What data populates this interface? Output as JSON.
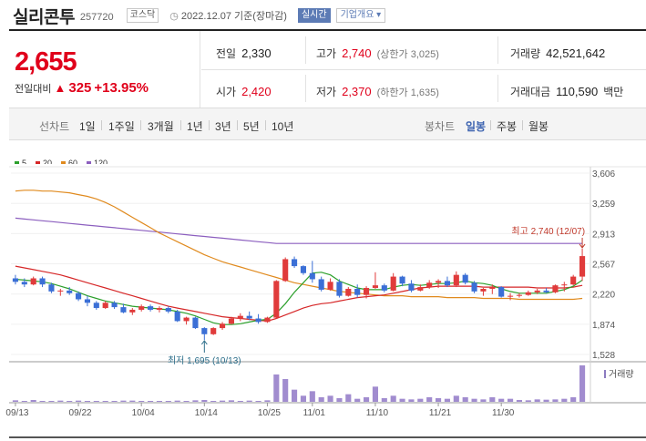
{
  "header": {
    "name": "실리콘투",
    "code": "257720",
    "market": "코스닥",
    "date": "2022.12.07",
    "basis": "기준(장마감)",
    "realtime": "실시간",
    "company_info": "기업개요"
  },
  "quote": {
    "price": "2,655",
    "change_label": "전일대비",
    "change": "325",
    "change_pct": "+13.95%"
  },
  "stats": {
    "prev_label": "전일",
    "prev": "2,330",
    "high_label": "고가",
    "high": "2,740",
    "upper_limit": "(상한가 3,025)",
    "volume_label": "거래량",
    "volume": "42,521,642",
    "open_label": "시가",
    "open": "2,420",
    "low_label": "저가",
    "low": "2,370",
    "lower_limit": "(하한가 1,635)",
    "amount_label": "거래대금",
    "amount": "110,590",
    "amount_unit": "백만"
  },
  "periods": {
    "label": "선차트",
    "items": [
      "1일",
      "1주일",
      "3개월",
      "1년",
      "3년",
      "5년",
      "10년"
    ],
    "candle_label": "봉차트",
    "candle_items": [
      "일봉",
      "주봉",
      "월봉"
    ],
    "candle_active": 0
  },
  "legend": [
    {
      "label": "5",
      "color": "#2ca02c"
    },
    {
      "label": "20",
      "color": "#d62728"
    },
    {
      "label": "60",
      "color": "#e08a1e"
    },
    {
      "label": "120",
      "color": "#8c5fbf"
    }
  ],
  "chart_data": {
    "type": "candlestick",
    "y_ticks": [
      "3,606",
      "3,259",
      "2,913",
      "2,567",
      "2,220",
      "1,874",
      "1,528"
    ],
    "ylim": [
      1528,
      3606
    ],
    "x_labels": [
      "09/13",
      "09/22",
      "10/04",
      "10/14",
      "10/25",
      "11/01",
      "11/10",
      "11/21",
      "11/30"
    ],
    "x_label_index": [
      0,
      7,
      14,
      21,
      28,
      33,
      40,
      47,
      54
    ],
    "up_color": "#e03b3b",
    "down_color": "#3b6fd6",
    "high_annotation": "최고 2,740 (12/07)",
    "low_annotation": "최저 1,695 (10/13)",
    "volume_label": "거래량",
    "candles": [
      [
        2400,
        2440,
        2330,
        2360
      ],
      [
        2360,
        2400,
        2300,
        2330
      ],
      [
        2330,
        2420,
        2320,
        2400
      ],
      [
        2400,
        2420,
        2300,
        2330
      ],
      [
        2330,
        2350,
        2230,
        2250
      ],
      [
        2250,
        2280,
        2200,
        2260
      ],
      [
        2260,
        2300,
        2210,
        2230
      ],
      [
        2230,
        2250,
        2140,
        2160
      ],
      [
        2160,
        2200,
        2080,
        2120
      ],
      [
        2120,
        2140,
        2040,
        2060
      ],
      [
        2060,
        2140,
        2050,
        2120
      ],
      [
        2120,
        2140,
        2050,
        2070
      ],
      [
        2070,
        2110,
        2000,
        2010
      ],
      [
        2010,
        2060,
        1980,
        2040
      ],
      [
        2040,
        2100,
        2020,
        2080
      ],
      [
        2080,
        2100,
        2020,
        2040
      ],
      [
        2040,
        2080,
        2010,
        2060
      ],
      [
        2060,
        2080,
        2000,
        2020
      ],
      [
        2020,
        2040,
        1900,
        1910
      ],
      [
        1910,
        1960,
        1870,
        1950
      ],
      [
        1950,
        1960,
        1820,
        1830
      ],
      [
        1830,
        1840,
        1695,
        1760
      ],
      [
        1760,
        1840,
        1750,
        1830
      ],
      [
        1830,
        1900,
        1810,
        1880
      ],
      [
        1880,
        1960,
        1870,
        1940
      ],
      [
        1940,
        2000,
        1910,
        1970
      ],
      [
        1970,
        2020,
        1920,
        1940
      ],
      [
        1940,
        1990,
        1880,
        1900
      ],
      [
        1900,
        1960,
        1890,
        1950
      ],
      [
        1950,
        2380,
        1940,
        2370
      ],
      [
        2370,
        2640,
        2360,
        2620
      ],
      [
        2620,
        2650,
        2520,
        2540
      ],
      [
        2540,
        2550,
        2440,
        2460
      ],
      [
        2460,
        2600,
        2350,
        2390
      ],
      [
        2390,
        2420,
        2250,
        2270
      ],
      [
        2270,
        2400,
        2260,
        2360
      ],
      [
        2360,
        2390,
        2180,
        2200
      ],
      [
        2200,
        2300,
        2190,
        2280
      ],
      [
        2280,
        2330,
        2180,
        2210
      ],
      [
        2210,
        2310,
        2170,
        2290
      ],
      [
        2290,
        2470,
        2280,
        2320
      ],
      [
        2320,
        2340,
        2240,
        2260
      ],
      [
        2260,
        2460,
        2250,
        2420
      ],
      [
        2420,
        2430,
        2310,
        2340
      ],
      [
        2340,
        2380,
        2240,
        2260
      ],
      [
        2260,
        2330,
        2250,
        2300
      ],
      [
        2300,
        2380,
        2280,
        2350
      ],
      [
        2350,
        2390,
        2290,
        2370
      ],
      [
        2370,
        2420,
        2300,
        2320
      ],
      [
        2320,
        2480,
        2300,
        2440
      ],
      [
        2440,
        2460,
        2330,
        2350
      ],
      [
        2350,
        2370,
        2230,
        2250
      ],
      [
        2250,
        2290,
        2200,
        2280
      ],
      [
        2280,
        2330,
        2220,
        2300
      ],
      [
        2300,
        2310,
        2180,
        2190
      ],
      [
        2190,
        2230,
        2150,
        2200
      ],
      [
        2200,
        2230,
        2180,
        2210
      ],
      [
        2210,
        2260,
        2200,
        2240
      ],
      [
        2240,
        2280,
        2220,
        2260
      ],
      [
        2260,
        2290,
        2230,
        2240
      ],
      [
        2240,
        2330,
        2230,
        2320
      ],
      [
        2320,
        2360,
        2250,
        2330
      ],
      [
        2330,
        2440,
        2320,
        2420
      ],
      [
        2420,
        2740,
        2370,
        2655
      ]
    ],
    "volumes": [
      0.5,
      0.3,
      0.6,
      0.3,
      0.3,
      0.4,
      0.3,
      0.4,
      0.3,
      0.3,
      0.3,
      0.3,
      0.4,
      0.4,
      0.3,
      0.3,
      0.3,
      0.3,
      0.4,
      0.3,
      0.5,
      0.6,
      0.3,
      0.4,
      0.5,
      0.3,
      0.4,
      0.3,
      0.5,
      9.0,
      7.5,
      4.0,
      2.0,
      3.5,
      1.5,
      2.0,
      1.2,
      2.5,
      1.0,
      1.5,
      5.0,
      1.2,
      2.0,
      1.0,
      0.8,
      1.0,
      1.5,
      1.2,
      1.0,
      2.0,
      1.5,
      1.0,
      0.8,
      1.5,
      1.0,
      1.0,
      0.6,
      0.5,
      0.8,
      0.7,
      0.8,
      1.0,
      1.5,
      12.0
    ],
    "ma5": [
      2390,
      2380,
      2370,
      2360,
      2340,
      2310,
      2280,
      2240,
      2200,
      2170,
      2140,
      2120,
      2100,
      2080,
      2070,
      2060,
      2050,
      2040,
      2020,
      2000,
      1970,
      1930,
      1890,
      1870,
      1870,
      1880,
      1900,
      1920,
      1930,
      2000,
      2110,
      2240,
      2350,
      2460,
      2470,
      2440,
      2370,
      2330,
      2290,
      2270,
      2270,
      2270,
      2300,
      2320,
      2330,
      2320,
      2330,
      2340,
      2340,
      2350,
      2370,
      2350,
      2340,
      2320,
      2280,
      2250,
      2230,
      2230,
      2230,
      2230,
      2250,
      2270,
      2310,
      2380
    ],
    "ma20": [
      2540,
      2520,
      2500,
      2480,
      2460,
      2440,
      2410,
      2380,
      2350,
      2320,
      2290,
      2260,
      2230,
      2200,
      2170,
      2140,
      2110,
      2080,
      2060,
      2040,
      2020,
      2000,
      1980,
      1960,
      1950,
      1940,
      1930,
      1920,
      1910,
      1940,
      1980,
      2020,
      2060,
      2090,
      2110,
      2120,
      2140,
      2160,
      2180,
      2190,
      2200,
      2210,
      2230,
      2250,
      2270,
      2290,
      2300,
      2310,
      2310,
      2310,
      2310,
      2310,
      2300,
      2300,
      2300,
      2300,
      2300,
      2300,
      2290,
      2290,
      2290,
      2290,
      2300,
      2320
    ],
    "ma60": [
      3400,
      3410,
      3410,
      3400,
      3400,
      3390,
      3380,
      3360,
      3340,
      3310,
      3270,
      3220,
      3160,
      3100,
      3040,
      2980,
      2920,
      2870,
      2820,
      2770,
      2720,
      2670,
      2630,
      2590,
      2560,
      2530,
      2500,
      2470,
      2440,
      2410,
      2380,
      2350,
      2330,
      2310,
      2290,
      2270,
      2250,
      2240,
      2230,
      2220,
      2210,
      2200,
      2200,
      2200,
      2190,
      2190,
      2190,
      2190,
      2180,
      2180,
      2180,
      2180,
      2170,
      2170,
      2170,
      2170,
      2160,
      2160,
      2160,
      2160,
      2160,
      2160,
      2160,
      2170
    ],
    "ma120": [
      3090,
      3080,
      3070,
      3060,
      3050,
      3040,
      3030,
      3020,
      3010,
      3000,
      2990,
      2980,
      2970,
      2960,
      2950,
      2940,
      2930,
      2920,
      2910,
      2900,
      2890,
      2880,
      2870,
      2860,
      2850,
      2840,
      2830,
      2820,
      2810,
      2800,
      2800,
      2800,
      2800,
      2800,
      2800,
      2800,
      2800,
      2800,
      2800,
      2800,
      2800,
      2800,
      2800,
      2800,
      2800,
      2800,
      2800,
      2800,
      2800,
      2800,
      2800,
      2800,
      2800,
      2800,
      2800,
      2800,
      2800,
      2800,
      2800,
      2800,
      2800,
      2800,
      2800,
      2800
    ]
  }
}
